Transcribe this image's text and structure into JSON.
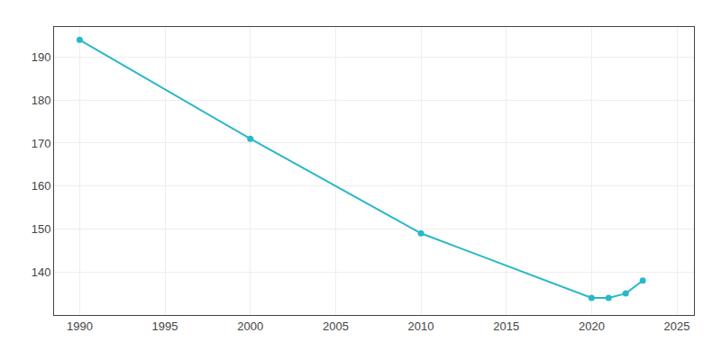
{
  "chart_data": {
    "type": "line",
    "x": [
      1990,
      2000,
      2010,
      2020,
      2021,
      2022,
      2023
    ],
    "values": [
      194,
      171,
      149,
      134,
      134,
      135,
      138
    ],
    "color": "#29b8c8",
    "marker": "circle",
    "xlim": [
      1988.5,
      2026
    ],
    "ylim": [
      130,
      197
    ],
    "xticks": [
      1990,
      1995,
      2000,
      2005,
      2010,
      2015,
      2020,
      2025
    ],
    "yticks": [
      140,
      150,
      160,
      170,
      180,
      190
    ],
    "grid": true
  }
}
